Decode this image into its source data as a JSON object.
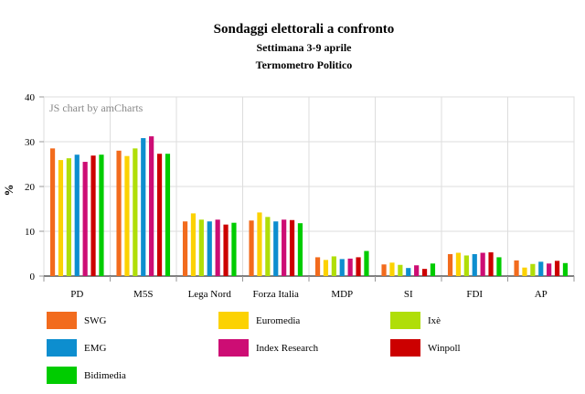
{
  "header": {
    "title": "Sondaggi elettorali a confronto",
    "subtitle": "Settimana 3-9 aprile",
    "source": "Termometro Politico"
  },
  "watermark": "JS chart by amCharts",
  "chart_data": {
    "type": "bar",
    "title": "Sondaggi elettorali a confronto",
    "subtitle": "Settimana 3-9 aprile",
    "xlabel": "",
    "ylabel": "%",
    "ylim": [
      0,
      40
    ],
    "yticks": [
      "0",
      "10",
      "20",
      "30",
      "40"
    ],
    "grid": true,
    "legend_position": "bottom",
    "categories": [
      "PD",
      "M5S",
      "Lega Nord",
      "Forza Italia",
      "MDP",
      "SI",
      "FDI",
      "AP"
    ],
    "series": [
      {
        "name": "SWG",
        "color": "#f26b1d",
        "values": [
          28.5,
          28.0,
          12.2,
          12.4,
          4.2,
          2.6,
          4.9,
          3.5
        ]
      },
      {
        "name": "Euromedia",
        "color": "#fcd202",
        "values": [
          25.9,
          26.8,
          14.0,
          14.2,
          3.6,
          3.0,
          5.2,
          1.9
        ]
      },
      {
        "name": "Ixè",
        "color": "#b0de09",
        "values": [
          26.3,
          28.5,
          12.6,
          13.2,
          4.4,
          2.5,
          4.6,
          2.7
        ]
      },
      {
        "name": "EMG",
        "color": "#0d8ecf",
        "values": [
          27.1,
          30.8,
          12.2,
          12.2,
          3.8,
          1.8,
          4.9,
          3.2
        ]
      },
      {
        "name": "Index Research",
        "color": "#cd0d74",
        "values": [
          25.5,
          31.2,
          12.6,
          12.6,
          3.9,
          2.4,
          5.2,
          2.8
        ]
      },
      {
        "name": "Winpoll",
        "color": "#cc0000",
        "values": [
          26.9,
          27.3,
          11.5,
          12.5,
          4.2,
          1.6,
          5.3,
          3.4
        ]
      },
      {
        "name": "Bidimedia",
        "color": "#00cc00",
        "values": [
          27.1,
          27.3,
          11.9,
          11.8,
          5.6,
          2.8,
          4.2,
          2.9
        ]
      }
    ]
  },
  "colors": {
    "grid": "#dddddd",
    "axis": "#000000",
    "watermark": "#888888"
  }
}
